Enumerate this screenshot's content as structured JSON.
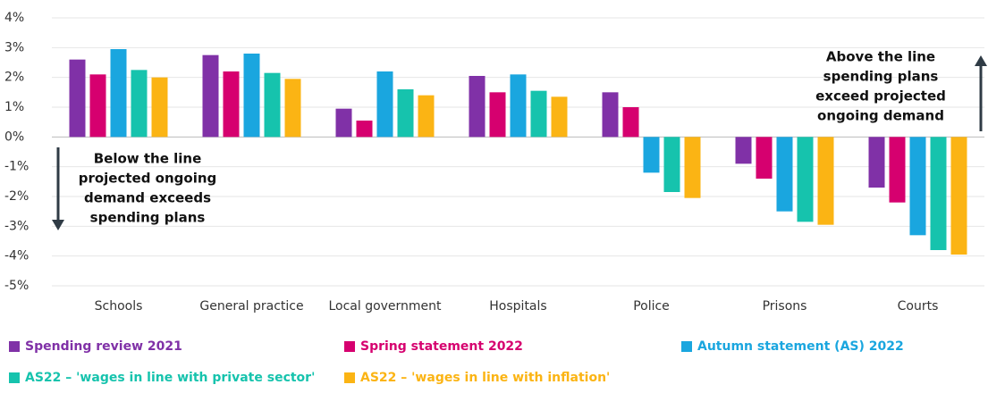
{
  "chart_data": {
    "type": "bar",
    "categories": [
      "Schools",
      "General practice",
      "Local government",
      "Hospitals",
      "Police",
      "Prisons",
      "Courts"
    ],
    "series": [
      {
        "name": "Spending review 2021",
        "color": "#8031a7",
        "values": [
          2.6,
          2.75,
          0.95,
          2.05,
          1.5,
          -0.9,
          -1.7
        ]
      },
      {
        "name": "Spring statement 2022",
        "color": "#d6006f",
        "values": [
          2.1,
          2.2,
          0.55,
          1.5,
          1.0,
          -1.4,
          -2.2
        ]
      },
      {
        "name": "Autumn statement (AS) 2022",
        "color": "#1aa6df",
        "values": [
          2.95,
          2.8,
          2.2,
          2.1,
          -1.2,
          -2.5,
          -3.3
        ]
      },
      {
        "name": "AS22 – 'wages in line with private sector'",
        "color": "#16c3ad",
        "values": [
          2.25,
          2.15,
          1.6,
          1.55,
          -1.85,
          -2.85,
          -3.8
        ]
      },
      {
        "name": "AS22 – 'wages in line with inflation'",
        "color": "#fbb414",
        "values": [
          2.0,
          1.95,
          1.4,
          1.35,
          -2.05,
          -2.95,
          -3.95
        ]
      }
    ],
    "ylim": [
      -5,
      4
    ],
    "yticks": [
      {
        "value": 4,
        "label": "4%"
      },
      {
        "value": 3,
        "label": "3%"
      },
      {
        "value": 2,
        "label": "2%"
      },
      {
        "value": 1,
        "label": "1%"
      },
      {
        "value": 0,
        "label": "0%"
      },
      {
        "value": -1,
        "label": "-1%"
      },
      {
        "value": -2,
        "label": "-2%"
      },
      {
        "value": -3,
        "label": "-3%"
      },
      {
        "value": -4,
        "label": "-4%"
      },
      {
        "value": -5,
        "label": "-5%"
      }
    ],
    "grid": true,
    "annotations": [
      {
        "lines": [
          "Below the line",
          "projected ongoing",
          "demand exceeds",
          "spending plans"
        ]
      },
      {
        "lines": [
          "Above the line",
          "spending plans",
          "exceed projected",
          "ongoing demand"
        ]
      }
    ]
  }
}
